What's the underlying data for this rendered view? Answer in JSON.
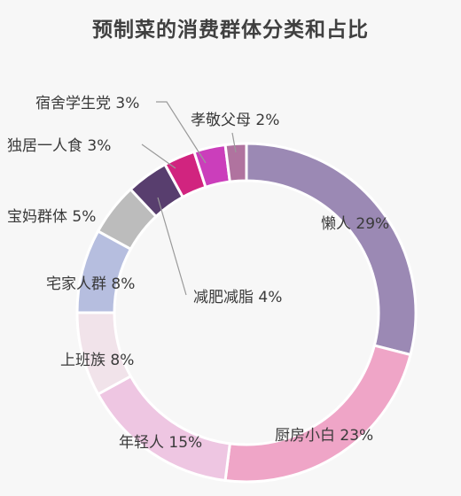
{
  "chart_data": {
    "type": "pie",
    "title": "预制菜的消费群体分类和占比",
    "slices": [
      {
        "label": "懒人 29%",
        "name": "懒人",
        "value": 29,
        "color": "#9b89b4"
      },
      {
        "label": "厨房小白 23%",
        "name": "厨房小白",
        "value": 23,
        "color": "#efa5c7"
      },
      {
        "label": "年轻人 15%",
        "name": "年轻人",
        "value": 15,
        "color": "#eec6e2"
      },
      {
        "label": "上班族 8%",
        "name": "上班族",
        "value": 8,
        "color": "#f1e3ea"
      },
      {
        "label": "宅家人群 8%",
        "name": "宅家人群",
        "value": 8,
        "color": "#b6bedf"
      },
      {
        "label": "宝妈群体 5%",
        "name": "宝妈群体",
        "value": 5,
        "color": "#bcbcbc"
      },
      {
        "label": "减肥减脂 4%",
        "name": "减肥减脂",
        "value": 4,
        "color": "#583e6e"
      },
      {
        "label": "独居一人食 3%",
        "name": "独居一人食",
        "value": 3,
        "color": "#d1247f"
      },
      {
        "label": "宿舍学生党 3%",
        "name": "宿舍学生党",
        "value": 3,
        "color": "#cb3ebb"
      },
      {
        "label": "孝敬父母 2%",
        "name": "孝敬父母",
        "value": 2,
        "color": "#b0739f"
      }
    ]
  }
}
